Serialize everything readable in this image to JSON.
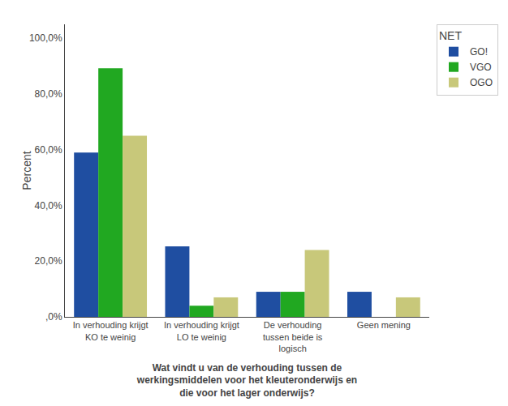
{
  "chart_data": {
    "type": "bar",
    "categories": [
      "In verhouding krijgt\nKO te weinig",
      "In verhouding krijgt\nLO te weinig",
      "De verhouding\ntussen beide is\nlogisch",
      "Geen mening"
    ],
    "series": [
      {
        "name": "GO!",
        "color": "#1F4EA1",
        "values": [
          59.0,
          25.3,
          9.0,
          9.0
        ]
      },
      {
        "name": "VGO",
        "color": "#21A821",
        "values": [
          89.2,
          4.0,
          9.0,
          0.0
        ]
      },
      {
        "name": "OGO",
        "color": "#C8C87A",
        "values": [
          65.0,
          7.0,
          24.0,
          7.0
        ]
      }
    ],
    "ylabel": "Percent",
    "xlabel": "Wat vindt u van de verhouding tussen de\nwerkingsmiddelen voor het kleuteronderwijs en\ndie voor het lager onderwijs?",
    "legend_title": "NET",
    "legend": "right",
    "ylim": [
      0,
      105
    ],
    "yticks": [
      {
        "value": 0,
        "label": ",0%"
      },
      {
        "value": 20,
        "label": "20,0%"
      },
      {
        "value": 40,
        "label": "40,0%"
      },
      {
        "value": 60,
        "label": "60,0%"
      },
      {
        "value": 80,
        "label": "80,0%"
      },
      {
        "value": 100,
        "label": "100,0%"
      }
    ],
    "grid": false
  }
}
